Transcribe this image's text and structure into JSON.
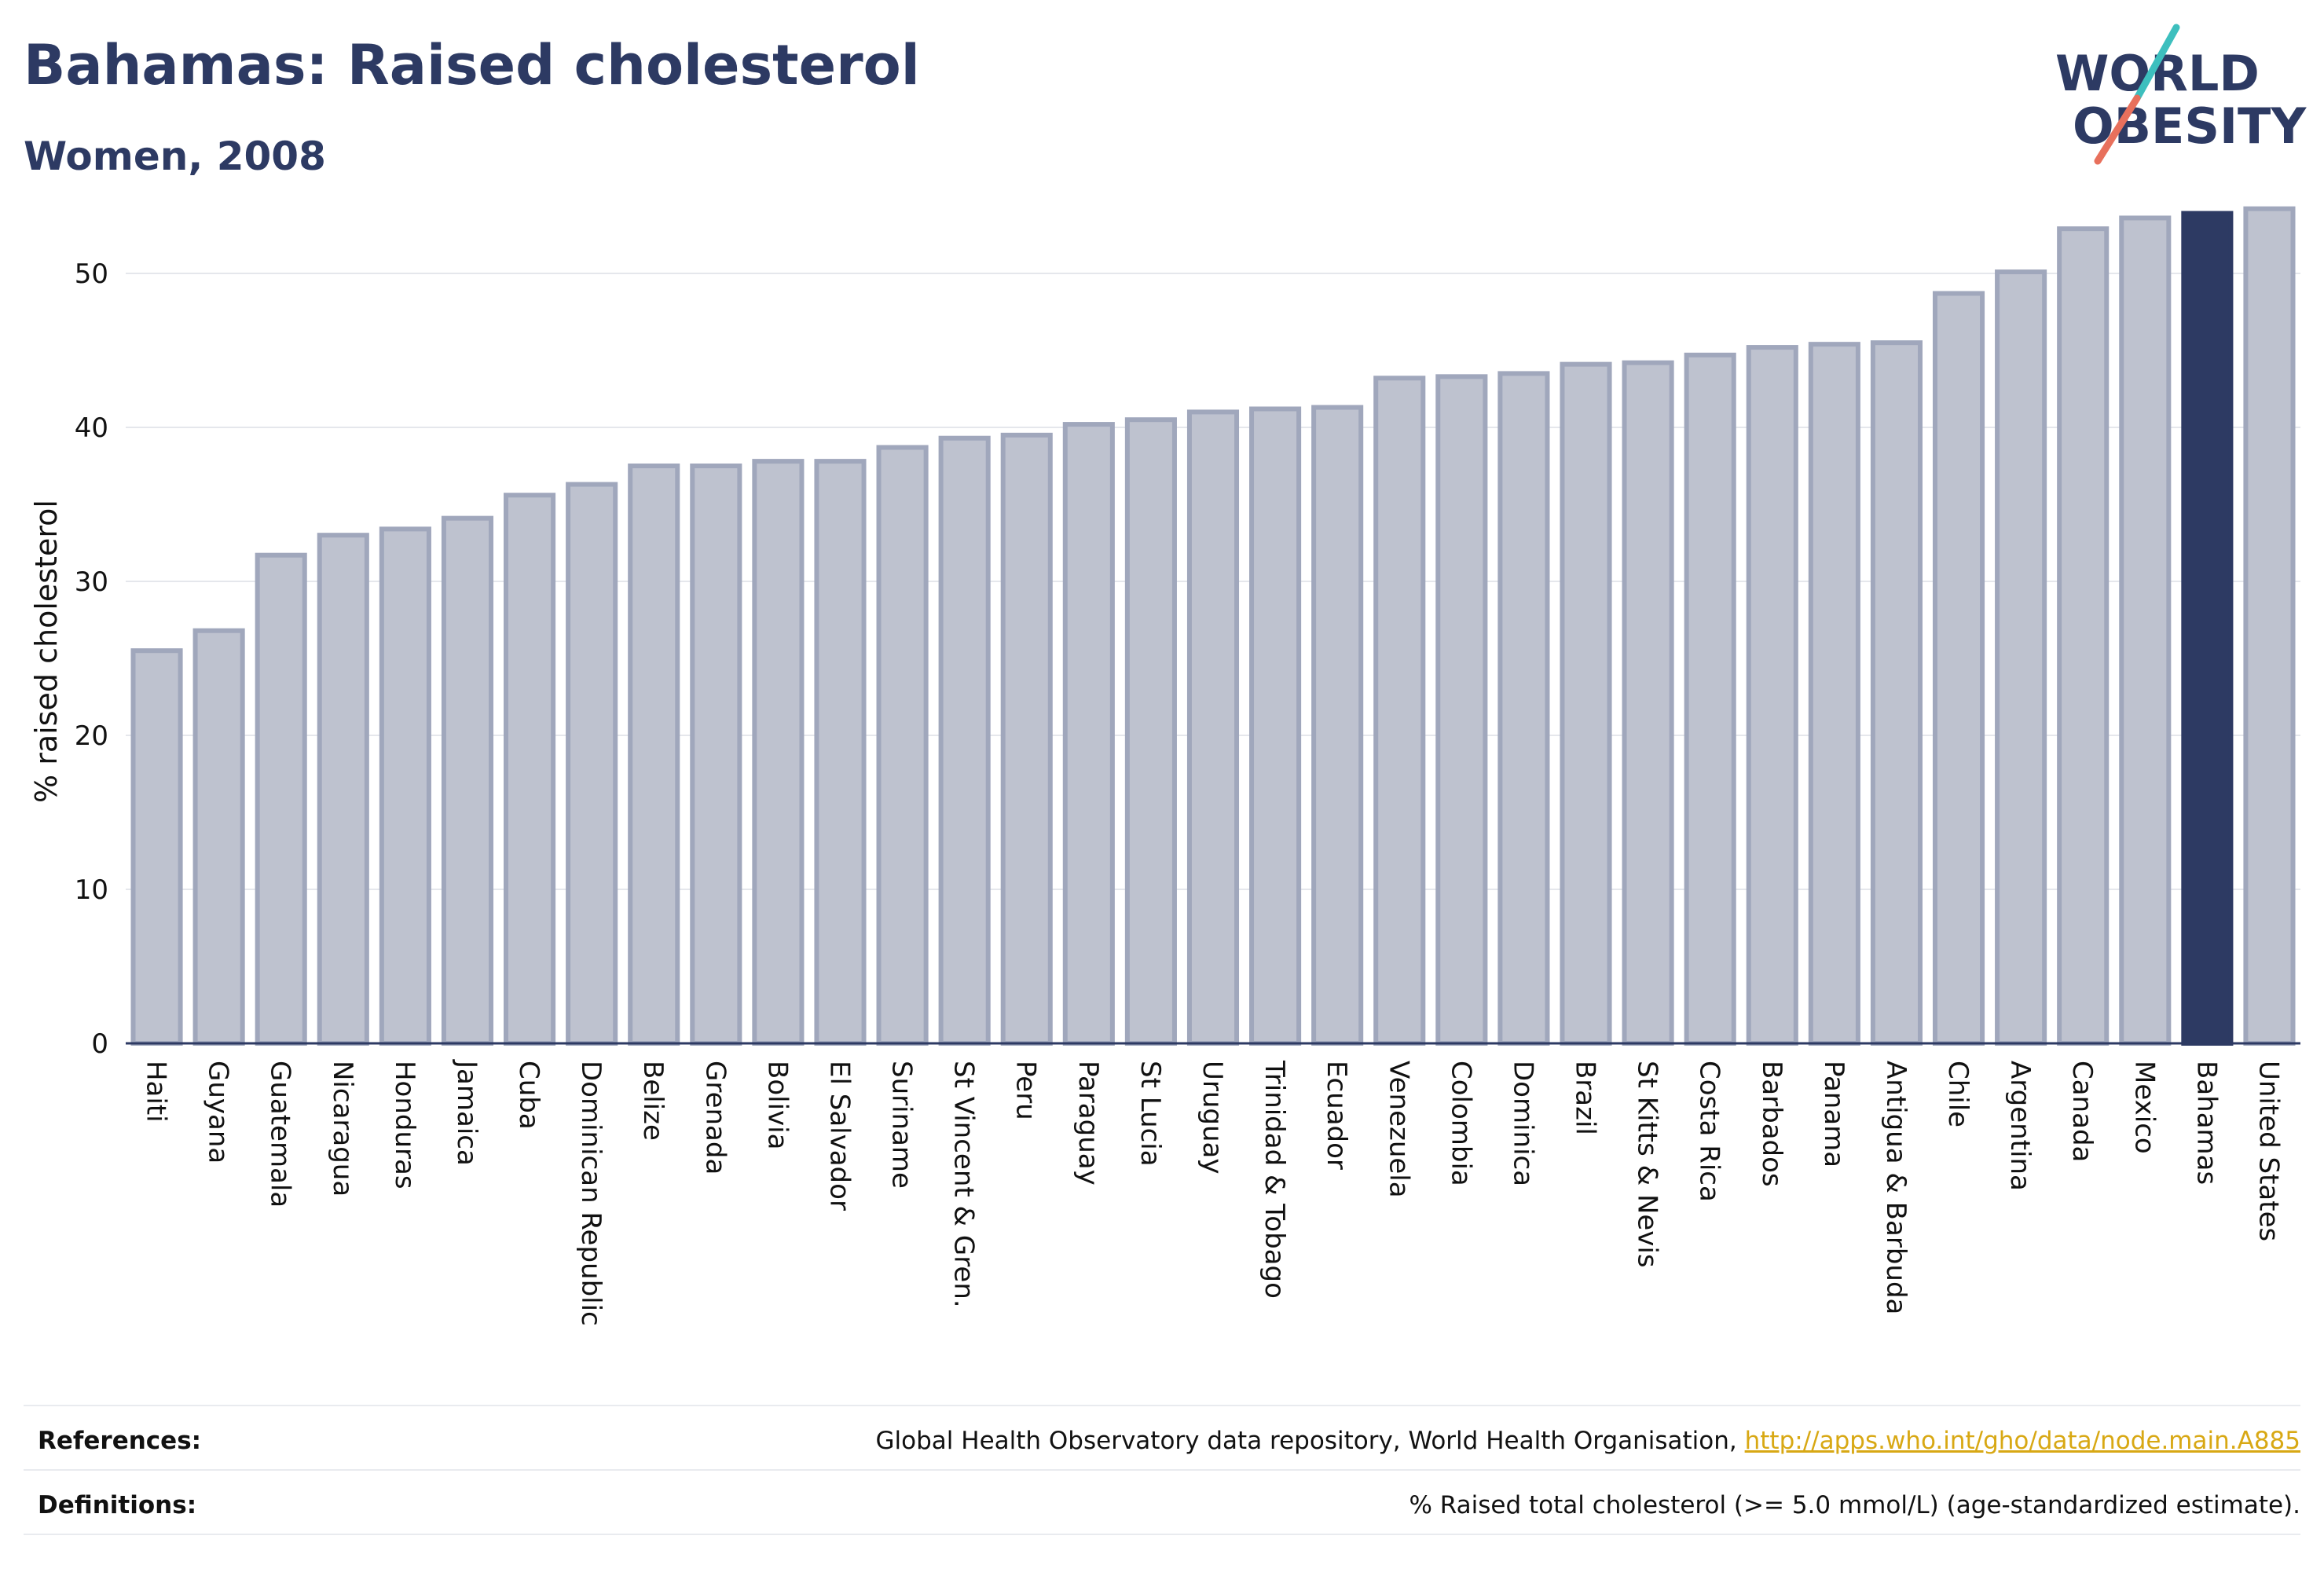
{
  "header": {
    "title": "Bahamas: Raised cholesterol",
    "subtitle": "Women, 2008"
  },
  "logo": {
    "line1": "WORLD",
    "line2": "OBESITY",
    "colors": {
      "text": "#2d3a63",
      "slash_teal": "#3dbfbe",
      "slash_coral": "#e8705c"
    }
  },
  "footer": {
    "references_label": "References:",
    "references_text": "Global Health Observatory data repository, World Health Organisation, ",
    "references_link": "http://apps.who.int/gho/data/node.main.A885",
    "definitions_label": "Definitions:",
    "definitions_text": "% Raised total cholesterol (>= 5.0 mmol/L) (age-standardized estimate)."
  },
  "chart_data": {
    "type": "bar",
    "ylabel": "% raised cholesterol",
    "xlabel": "",
    "ylim": [
      0,
      55
    ],
    "yticks": [
      0,
      10,
      20,
      30,
      40,
      50
    ],
    "grid": true,
    "highlight": "Bahamas",
    "colors": {
      "bar": "#bec2cf",
      "bar_border": "#a0a7bc",
      "highlight": "#2d3a63",
      "grid": "#e5e7ec",
      "axis": "#2d3a63"
    },
    "categories": [
      "Haiti",
      "Guyana",
      "Guatemala",
      "Nicaragua",
      "Honduras",
      "Jamaica",
      "Cuba",
      "Dominican Republic",
      "Belize",
      "Grenada",
      "Bolivia",
      "El Salvador",
      "Suriname",
      "St Vincent & Gren.",
      "Peru",
      "Paraguay",
      "St Lucia",
      "Uruguay",
      "Trinidad & Tobago",
      "Ecuador",
      "Venezuela",
      "Colombia",
      "Dominica",
      "Brazil",
      "St Kitts & Nevis",
      "Costa Rica",
      "Barbados",
      "Panama",
      "Antigua & Barbuda",
      "Chile",
      "Argentina",
      "Canada",
      "Mexico",
      "Bahamas",
      "United States"
    ],
    "values": [
      25.5,
      26.8,
      31.7,
      33.0,
      33.4,
      34.1,
      35.6,
      36.3,
      37.5,
      37.5,
      37.8,
      37.8,
      38.7,
      39.3,
      39.5,
      40.2,
      40.5,
      41.0,
      41.2,
      41.3,
      43.2,
      43.3,
      43.5,
      44.1,
      44.2,
      44.7,
      45.2,
      45.4,
      45.5,
      48.7,
      50.1,
      52.9,
      53.6,
      53.9,
      54.2
    ]
  }
}
